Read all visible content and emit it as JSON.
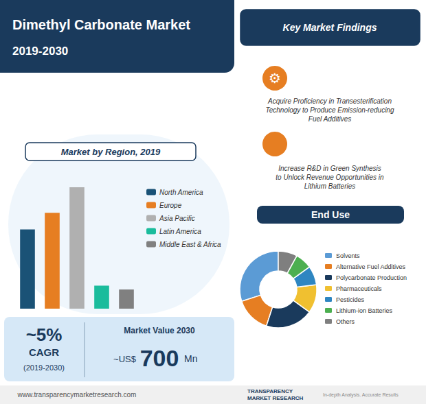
{
  "title": "Dimethyl Carbonate Market",
  "subtitle": "2019-2030",
  "annotations": [
    "Key Market Findings",
    "⚙",
    "Acquire Proficiency in Transesterification\nTechnology to Produce Emission-reducing\nFuel Additives",
    "Increase R&D in Green Synthesis\nto Unlock Revenue Opportunities in\nLithium Batteries",
    "~5%",
    "CAGR",
    "(2019-2030)",
    "Market Value 2030",
    "~US$",
    "700",
    "Mn",
    "www.transparencymarketresearch.com",
    "TRANSPARENCY\nMARKET RESEARCH",
    "In-depth Analysis. Accurate Results"
  ],
  "chart_data": [
    {
      "type": "bar",
      "title": "Market by Region, 2019",
      "categories": [
        "North America",
        "Europe",
        "Asia Pacific",
        "Latin America",
        "Middle East & Africa"
      ],
      "values": [
        0.62,
        0.75,
        0.95,
        0.18,
        0.15
      ],
      "colors": [
        "#1a5276",
        "#e67e22",
        "#b0b0b0",
        "#1abc9c",
        "#808080"
      ],
      "ylim": [
        0,
        1.1
      ],
      "tick_labels": false,
      "grid": false,
      "legend": "right"
    },
    {
      "type": "pie",
      "title": "End Use",
      "categories": [
        "Solvents",
        "Alternative Fuel Additives",
        "Polycarbonate Production",
        "Pharmaceuticals",
        "Pesticides",
        "Lithium-ion Batteries",
        "Others"
      ],
      "values": [
        30,
        15,
        20,
        12,
        8,
        7,
        8
      ],
      "colors": [
        "#5b9bd5",
        "#e67e22",
        "#1a3a5c",
        "#f0c030",
        "#2e86c1",
        "#4caf50",
        "#7f7f7f"
      ],
      "legend": "right"
    }
  ]
}
